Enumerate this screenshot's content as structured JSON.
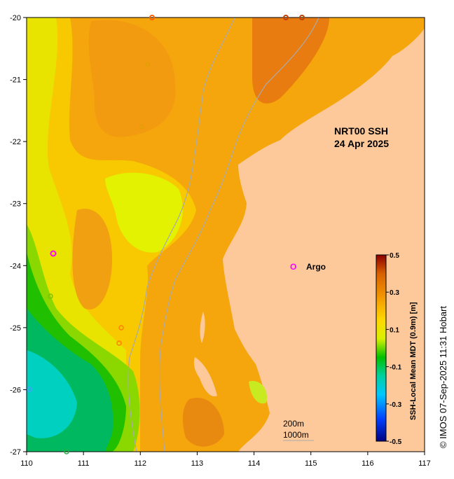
{
  "map": {
    "title_line1": "NRT00 SSH",
    "title_line2": "24 Apr 2025",
    "x_ticks": [
      "110",
      "111",
      "112",
      "113",
      "114",
      "115",
      "116",
      "117"
    ],
    "y_ticks": [
      "-20",
      "-21",
      "-22",
      "-23",
      "-24",
      "-25",
      "-26",
      "-27"
    ],
    "legend_marker": "O",
    "legend_label": "Argo",
    "scale_label_1": "200m",
    "scale_label_2": "1000m",
    "credit": "© IMOS 07-Sep-2025 11:31 Hobart",
    "colors": {
      "land": "#fdc99b",
      "contour_line": "#aaaaaa",
      "argo_marker": "#ff00ff"
    }
  },
  "colorbar": {
    "label": "SSH-Local Mean MDT (0.9m) [m]",
    "ticks": [
      "0.5",
      "0.3",
      "0.1",
      "-0.1",
      "-0.3",
      "-0.5"
    ],
    "range": [
      -0.5,
      0.5
    ]
  }
}
